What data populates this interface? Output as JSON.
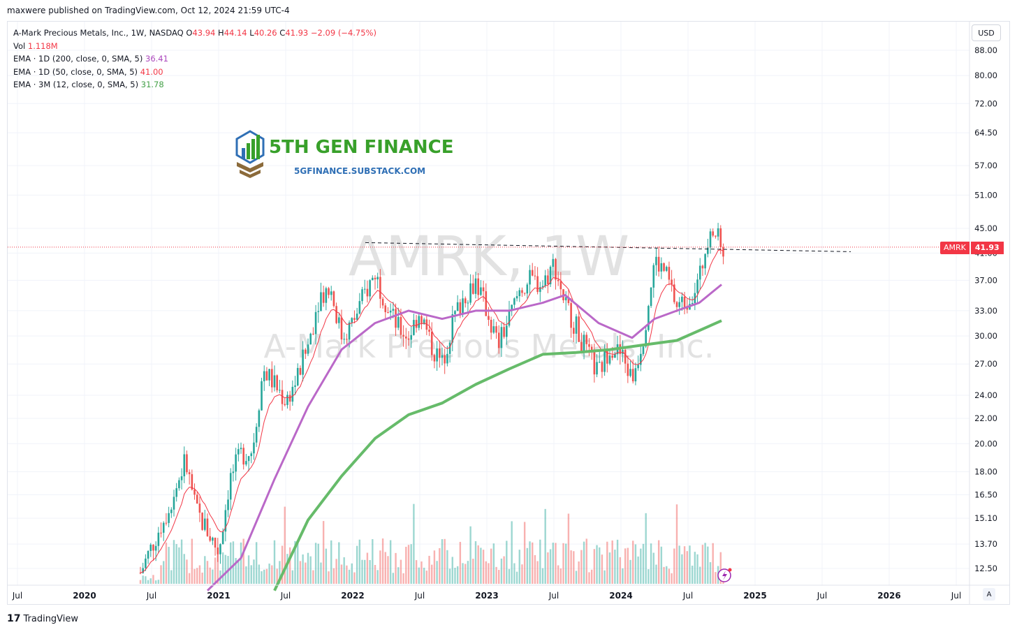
{
  "header": {
    "published": "maxwere published on TradingView.com, Oct 12, 2024 21:59 UTC-4"
  },
  "legend": {
    "title": "A-Mark Precious Metals, Inc., 1W, NASDAQ",
    "o_label": "O",
    "o_value": "43.94",
    "h_label": "H",
    "h_value": "44.14",
    "l_label": "L",
    "l_value": "40.26",
    "c_label": "C",
    "c_value": "41.93",
    "change": "−2.09 (−4.75%)",
    "vol_label": "Vol",
    "vol_value": "1.118M",
    "ema1_label": "EMA · 1D (200, close, 0, SMA, 5)",
    "ema1_value": "36.41",
    "ema2_label": "EMA · 1D (50, close, 0, SMA, 5)",
    "ema2_value": "41.00",
    "ema3_label": "EMA · 3M (12, close, 0, SMA, 5)",
    "ema3_value": "31.78"
  },
  "currency_button": "USD",
  "auto_button": "A",
  "price_tag": {
    "symbol": "AMRK",
    "value": "41.93"
  },
  "watermark": {
    "symbol": "AMRK, 1W",
    "name": "A-Mark Precious Metals, Inc."
  },
  "logo": {
    "title": "5TH GEN FINANCE",
    "subtitle": "5GFINANCE.SUBSTACK.COM"
  },
  "footer": {
    "brand": "TradingView",
    "mark": "17"
  },
  "colors": {
    "up": "#26a69a",
    "down": "#ef5350",
    "ema200": "#ba68c8",
    "ema50": "#f23645",
    "ema3m": "#66bb6a",
    "price_line": "#f23645"
  },
  "chart_data": {
    "type": "candlestick",
    "symbol": "AMRK",
    "timeframe": "1W",
    "scale": "log",
    "grid": true,
    "y_ticks": [
      "88.00",
      "80.00",
      "72.00",
      "64.50",
      "57.00",
      "51.00",
      "45.00",
      "41.00",
      "37.00",
      "33.00",
      "30.00",
      "27.00",
      "24.00",
      "22.00",
      "20.00",
      "18.00",
      "16.50",
      "15.10",
      "13.70",
      "12.50"
    ],
    "x_ticks": [
      "Jul",
      "2020",
      "Jul",
      "2021",
      "Jul",
      "2022",
      "Jul",
      "2023",
      "Jul",
      "2024",
      "Jul",
      "2025",
      "Jul",
      "2026",
      "Jul"
    ],
    "last_price": 41.93,
    "resistance_level": 42.2,
    "price_path": [
      {
        "t": "2020-06",
        "v": 12.3
      },
      {
        "t": "2020-09",
        "v": 16.5
      },
      {
        "t": "2020-10",
        "v": 18.8
      },
      {
        "t": "2020-11",
        "v": 15.5
      },
      {
        "t": "2020-12",
        "v": 14.4
      },
      {
        "t": "2021-01",
        "v": 13.3
      },
      {
        "t": "2021-02",
        "v": 17.5
      },
      {
        "t": "2021-03",
        "v": 19.2
      },
      {
        "t": "2021-04",
        "v": 19.5
      },
      {
        "t": "2021-05",
        "v": 26.5
      },
      {
        "t": "2021-06",
        "v": 25.0
      },
      {
        "t": "2021-07",
        "v": 23.5
      },
      {
        "t": "2021-08",
        "v": 25.5
      },
      {
        "t": "2021-09",
        "v": 29.0
      },
      {
        "t": "2021-10",
        "v": 35.0
      },
      {
        "t": "2021-11",
        "v": 36.0
      },
      {
        "t": "2021-12",
        "v": 30.0
      },
      {
        "t": "2022-01",
        "v": 31.5
      },
      {
        "t": "2022-02",
        "v": 35.0
      },
      {
        "t": "2022-03",
        "v": 38.0
      },
      {
        "t": "2022-04",
        "v": 34.0
      },
      {
        "t": "2022-05",
        "v": 31.0
      },
      {
        "t": "2022-06",
        "v": 30.0
      },
      {
        "t": "2022-07",
        "v": 33.0
      },
      {
        "t": "2022-08",
        "v": 29.0
      },
      {
        "t": "2022-09",
        "v": 27.0
      },
      {
        "t": "2022-10",
        "v": 32.0
      },
      {
        "t": "2022-11",
        "v": 35.0
      },
      {
        "t": "2022-12",
        "v": 37.0
      },
      {
        "t": "2023-01",
        "v": 33.0
      },
      {
        "t": "2023-02",
        "v": 29.0
      },
      {
        "t": "2023-03",
        "v": 32.0
      },
      {
        "t": "2023-04",
        "v": 36.0
      },
      {
        "t": "2023-05",
        "v": 37.0
      },
      {
        "t": "2023-06",
        "v": 36.5
      },
      {
        "t": "2023-07",
        "v": 39.5
      },
      {
        "t": "2023-08",
        "v": 34.0
      },
      {
        "t": "2023-09",
        "v": 31.0
      },
      {
        "t": "2023-10",
        "v": 28.0
      },
      {
        "t": "2023-11",
        "v": 26.0
      },
      {
        "t": "2023-12",
        "v": 29.0
      },
      {
        "t": "2024-01",
        "v": 28.0
      },
      {
        "t": "2024-02",
        "v": 25.5
      },
      {
        "t": "2024-03",
        "v": 30.0
      },
      {
        "t": "2024-04",
        "v": 40.0
      },
      {
        "t": "2024-05",
        "v": 38.0
      },
      {
        "t": "2024-06",
        "v": 33.5
      },
      {
        "t": "2024-07",
        "v": 34.5
      },
      {
        "t": "2024-08",
        "v": 37.0
      },
      {
        "t": "2024-09",
        "v": 46.0
      },
      {
        "t": "2024-10",
        "v": 41.93
      }
    ],
    "ema_1d_200": [
      {
        "t": "2020-12",
        "v": 11.5
      },
      {
        "t": "2021-03",
        "v": 13.0
      },
      {
        "t": "2021-06",
        "v": 17.5
      },
      {
        "t": "2021-09",
        "v": 23.0
      },
      {
        "t": "2021-12",
        "v": 28.5
      },
      {
        "t": "2022-03",
        "v": 31.5
      },
      {
        "t": "2022-06",
        "v": 33.0
      },
      {
        "t": "2022-09",
        "v": 32.0
      },
      {
        "t": "2022-12",
        "v": 33.0
      },
      {
        "t": "2023-03",
        "v": 33.0
      },
      {
        "t": "2023-06",
        "v": 34.0
      },
      {
        "t": "2023-08",
        "v": 35.0
      },
      {
        "t": "2023-11",
        "v": 31.5
      },
      {
        "t": "2024-02",
        "v": 29.8
      },
      {
        "t": "2024-04",
        "v": 32.0
      },
      {
        "t": "2024-06",
        "v": 33.0
      },
      {
        "t": "2024-08",
        "v": 34.0
      },
      {
        "t": "2024-10",
        "v": 36.41
      }
    ],
    "ema_3m_12": [
      {
        "t": "2021-06",
        "v": 11.5
      },
      {
        "t": "2021-09",
        "v": 15.0
      },
      {
        "t": "2021-12",
        "v": 17.7
      },
      {
        "t": "2022-03",
        "v": 20.4
      },
      {
        "t": "2022-06",
        "v": 22.3
      },
      {
        "t": "2022-09",
        "v": 23.3
      },
      {
        "t": "2022-12",
        "v": 25.0
      },
      {
        "t": "2023-03",
        "v": 26.5
      },
      {
        "t": "2023-06",
        "v": 28.0
      },
      {
        "t": "2023-09",
        "v": 28.2
      },
      {
        "t": "2023-12",
        "v": 28.5
      },
      {
        "t": "2024-03",
        "v": 29.0
      },
      {
        "t": "2024-06",
        "v": 29.5
      },
      {
        "t": "2024-10",
        "v": 31.78
      }
    ],
    "ema_1d_50_last": 41.0,
    "volume_last": "1.118M"
  }
}
